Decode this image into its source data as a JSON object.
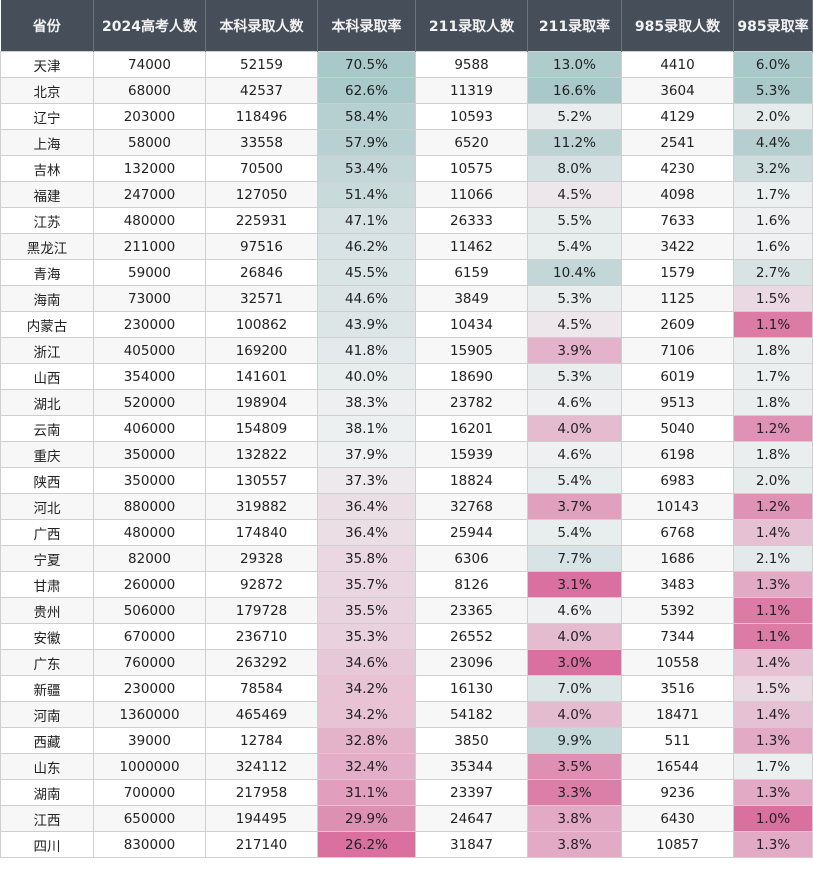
{
  "headers": [
    "省份",
    "2024高考人数",
    "本科录取人数",
    "本科录取率",
    "211录取人数",
    "211录取率",
    "985录取人数",
    "985录取率"
  ],
  "rows": [
    [
      "天津",
      "74000",
      "52159",
      "70.5%",
      "9588",
      "13.0%",
      "4410",
      "6.0%"
    ],
    [
      "北京",
      "68000",
      "42537",
      "62.6%",
      "11319",
      "16.6%",
      "3604",
      "5.3%"
    ],
    [
      "辽宁",
      "203000",
      "118496",
      "58.4%",
      "10593",
      "5.2%",
      "4129",
      "2.0%"
    ],
    [
      "上海",
      "58000",
      "33558",
      "57.9%",
      "6520",
      "11.2%",
      "2541",
      "4.4%"
    ],
    [
      "吉林",
      "132000",
      "70500",
      "53.4%",
      "10575",
      "8.0%",
      "4230",
      "3.2%"
    ],
    [
      "福建",
      "247000",
      "127050",
      "51.4%",
      "11066",
      "4.5%",
      "4098",
      "1.7%"
    ],
    [
      "江苏",
      "480000",
      "225931",
      "47.1%",
      "26333",
      "5.5%",
      "7633",
      "1.6%"
    ],
    [
      "黑龙江",
      "211000",
      "97516",
      "46.2%",
      "11462",
      "5.4%",
      "3422",
      "1.6%"
    ],
    [
      "青海",
      "59000",
      "26846",
      "45.5%",
      "6159",
      "10.4%",
      "1579",
      "2.7%"
    ],
    [
      "海南",
      "73000",
      "32571",
      "44.6%",
      "3849",
      "5.3%",
      "1125",
      "1.5%"
    ],
    [
      "内蒙古",
      "230000",
      "100862",
      "43.9%",
      "10434",
      "4.5%",
      "2609",
      "1.1%"
    ],
    [
      "浙江",
      "405000",
      "169200",
      "41.8%",
      "15905",
      "3.9%",
      "7106",
      "1.8%"
    ],
    [
      "山西",
      "354000",
      "141601",
      "40.0%",
      "18690",
      "5.3%",
      "6019",
      "1.7%"
    ],
    [
      "湖北",
      "520000",
      "198904",
      "38.3%",
      "23782",
      "4.6%",
      "9513",
      "1.8%"
    ],
    [
      "云南",
      "406000",
      "154809",
      "38.1%",
      "16201",
      "4.0%",
      "5040",
      "1.2%"
    ],
    [
      "重庆",
      "350000",
      "132822",
      "37.9%",
      "15939",
      "4.6%",
      "6198",
      "1.8%"
    ],
    [
      "陕西",
      "350000",
      "130557",
      "37.3%",
      "18824",
      "5.4%",
      "6983",
      "2.0%"
    ],
    [
      "河北",
      "880000",
      "319882",
      "36.4%",
      "32768",
      "3.7%",
      "10143",
      "1.2%"
    ],
    [
      "广西",
      "480000",
      "174840",
      "36.4%",
      "25944",
      "5.4%",
      "6768",
      "1.4%"
    ],
    [
      "宁夏",
      "82000",
      "29328",
      "35.8%",
      "6306",
      "7.7%",
      "1686",
      "2.1%"
    ],
    [
      "甘肃",
      "260000",
      "92872",
      "35.7%",
      "8126",
      "3.1%",
      "3483",
      "1.3%"
    ],
    [
      "贵州",
      "506000",
      "179728",
      "35.5%",
      "23365",
      "4.6%",
      "5392",
      "1.1%"
    ],
    [
      "安徽",
      "670000",
      "236710",
      "35.3%",
      "26552",
      "4.0%",
      "7344",
      "1.1%"
    ],
    [
      "广东",
      "760000",
      "263292",
      "34.6%",
      "23096",
      "3.0%",
      "10558",
      "1.4%"
    ],
    [
      "新疆",
      "230000",
      "78584",
      "34.2%",
      "16130",
      "7.0%",
      "3516",
      "1.5%"
    ],
    [
      "河南",
      "1360000",
      "465469",
      "34.2%",
      "54182",
      "4.0%",
      "18471",
      "1.4%"
    ],
    [
      "西藏",
      "39000",
      "12784",
      "32.8%",
      "3850",
      "9.9%",
      "511",
      "1.3%"
    ],
    [
      "山东",
      "1000000",
      "324112",
      "32.4%",
      "35344",
      "3.5%",
      "16544",
      "1.7%"
    ],
    [
      "湖南",
      "700000",
      "217958",
      "31.1%",
      "23397",
      "3.3%",
      "9236",
      "1.3%"
    ],
    [
      "江西",
      "650000",
      "194495",
      "29.9%",
      "24647",
      "3.8%",
      "6430",
      "1.0%"
    ],
    [
      "四川",
      "830000",
      "217140",
      "26.2%",
      "31847",
      "3.8%",
      "10857",
      "1.3%"
    ]
  ],
  "colors": {
    "header_bg": "#464f59",
    "header_text": "#f2f2f2",
    "high_rate": "#a9c8c9",
    "mid_rate": "#eef0f1",
    "low_rate": "#d9709f"
  }
}
